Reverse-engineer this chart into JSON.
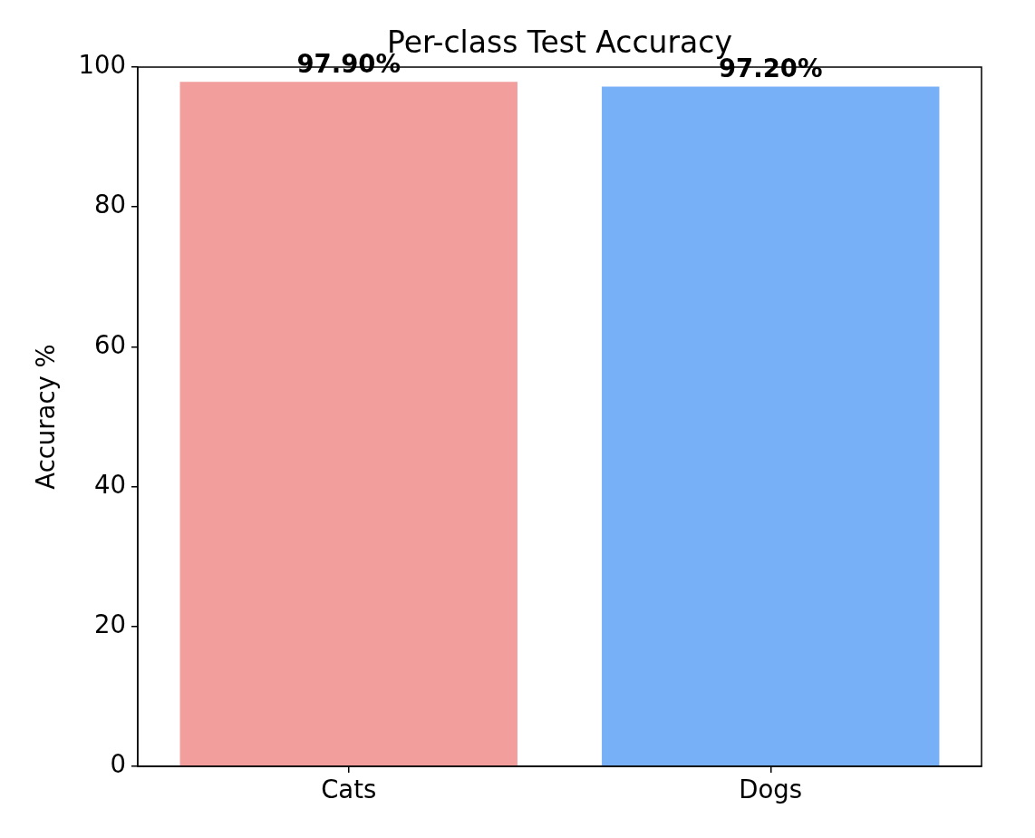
{
  "chart_data": {
    "type": "bar",
    "title": "Per-class Test Accuracy",
    "ylabel": "Accuracy %",
    "categories": [
      "Cats",
      "Dogs"
    ],
    "values": [
      97.9,
      97.2
    ],
    "colors": [
      "#f19e9c",
      "#78b0f7"
    ],
    "value_labels": [
      "97.90%",
      "97.20%"
    ],
    "ylim": [
      0,
      100
    ],
    "yticks": [
      0,
      20,
      40,
      60,
      80,
      100
    ]
  }
}
